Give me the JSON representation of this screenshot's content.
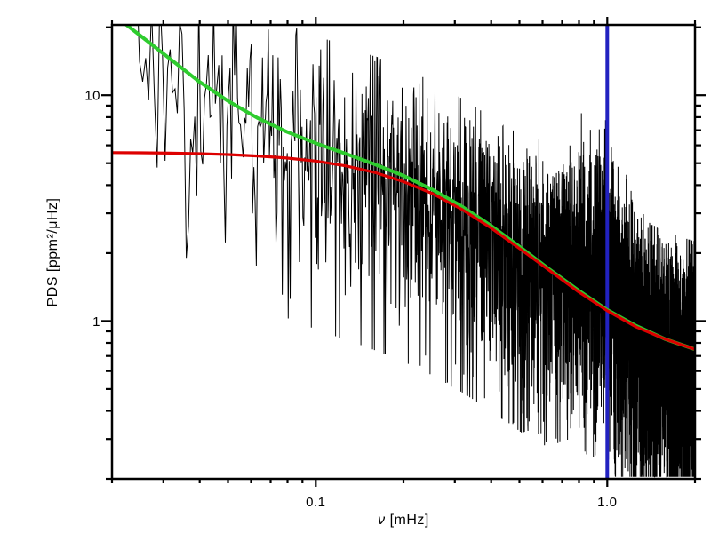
{
  "chart_data": {
    "type": "line",
    "title": "",
    "xlabel": "ν [mHz]",
    "xlabel_symbol": "ν",
    "xlabel_unit": " [mHz]",
    "ylabel": "PDS [ppm²/μHz]",
    "xscale": "log",
    "yscale": "log",
    "xlim": [
      0.02,
      2.0
    ],
    "ylim": [
      0.2,
      20.5
    ],
    "grid": false,
    "legend": null,
    "background": "#ffffff",
    "frame_color": "#000000",
    "x_ticks_major": {
      "values": [
        0.1,
        1.0
      ],
      "labels": [
        "0.1",
        "1.0"
      ]
    },
    "x_ticks_minor": [
      0.02,
      0.03,
      0.04,
      0.05,
      0.06,
      0.07,
      0.08,
      0.09,
      0.2,
      0.3,
      0.4,
      0.5,
      0.6,
      0.7,
      0.8,
      0.9,
      2.0
    ],
    "y_ticks_major": {
      "values": [
        1,
        10
      ],
      "labels": [
        "1",
        "10"
      ]
    },
    "y_ticks_minor": [
      0.2,
      0.3,
      0.4,
      0.5,
      0.6,
      0.7,
      0.8,
      0.9,
      2,
      3,
      4,
      5,
      6,
      7,
      8,
      9,
      20
    ],
    "series": [
      {
        "name": "observed-power-spectrum",
        "type": "noisy-spectrum",
        "color": "#000000",
        "line_width": 1,
        "x_start": 0.023,
        "x_end": 2.0,
        "n_points": 3200,
        "noise": {
          "seed": 814,
          "dof": 4,
          "clip_min": 0.15,
          "clip_max": 3.0
        },
        "background_model": {
          "plateau": 5.0,
          "knee_mhz": 0.32,
          "slope": 1.9,
          "white_noise": 0.6,
          "activity_amp": 45,
          "activity_knee_mhz": 0.016,
          "activity_slope": 2.05
        },
        "oscillation_bump": {
          "center_mhz": 0.93,
          "sigma_mhz": 0.17,
          "height": 1.35,
          "comb_spacing_mhz": 0.057,
          "peak_power_ppm2_uhz": 7
        }
      },
      {
        "name": "frequency-marker",
        "type": "vline",
        "color": "#2222c0",
        "line_width": 4,
        "x": 1.0
      },
      {
        "name": "fit-total",
        "type": "smooth",
        "color": "#2ecc2e",
        "line_width": 4,
        "x": [
          0.02,
          0.0251,
          0.0316,
          0.0398,
          0.0501,
          0.0631,
          0.0794,
          0.1,
          0.1259,
          0.1585,
          0.1995,
          0.2512,
          0.3162,
          0.3981,
          0.5012,
          0.631,
          0.7943,
          1.0,
          1.259,
          1.585,
          1.995
        ],
        "y": [
          23.0,
          18.3,
          14.5,
          11.5,
          9.41,
          7.93,
          6.89,
          6.13,
          5.52,
          4.96,
          4.41,
          3.82,
          3.23,
          2.65,
          2.13,
          1.7,
          1.37,
          1.12,
          0.95,
          0.83,
          0.75
        ]
      },
      {
        "name": "fit-background-component",
        "type": "smooth",
        "color": "#dd0000",
        "line_width": 3.2,
        "x": [
          0.02,
          0.0251,
          0.0316,
          0.0398,
          0.0501,
          0.0631,
          0.0794,
          0.1,
          0.1259,
          0.1585,
          0.1995,
          0.2512,
          0.3162,
          0.3981,
          0.5012,
          0.631,
          0.7943,
          1.0,
          1.259,
          1.585,
          1.995
        ],
        "y": [
          5.57,
          5.56,
          5.54,
          5.51,
          5.46,
          5.38,
          5.27,
          5.11,
          4.87,
          4.56,
          4.15,
          3.67,
          3.13,
          2.59,
          2.09,
          1.68,
          1.35,
          1.11,
          0.94,
          0.83,
          0.75
        ]
      }
    ]
  }
}
